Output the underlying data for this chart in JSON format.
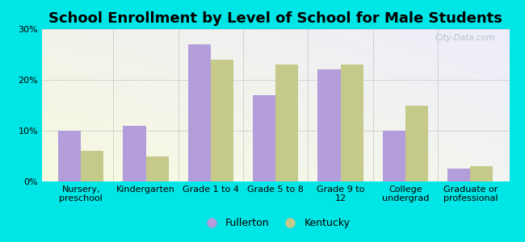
{
  "title": "School Enrollment by Level of School for Male Students",
  "categories": [
    "Nursery,\npreschool",
    "Kindergarten",
    "Grade 1 to 4",
    "Grade 5 to 8",
    "Grade 9 to\n12",
    "College\nundergrad",
    "Graduate or\nprofessional"
  ],
  "fullerton": [
    10,
    11,
    27,
    17,
    22,
    10,
    2.5
  ],
  "kentucky": [
    6,
    5,
    24,
    23,
    23,
    15,
    3
  ],
  "fullerton_color": "#b39ddb",
  "kentucky_color": "#c5c98a",
  "background_color": "#00e5e5",
  "ylim": [
    0,
    30
  ],
  "yticks": [
    0,
    10,
    20,
    30
  ],
  "title_fontsize": 13,
  "tick_fontsize": 8,
  "legend_fontsize": 9,
  "bar_width": 0.35,
  "grid_color": "#cccccc",
  "watermark": "City-Data.com"
}
